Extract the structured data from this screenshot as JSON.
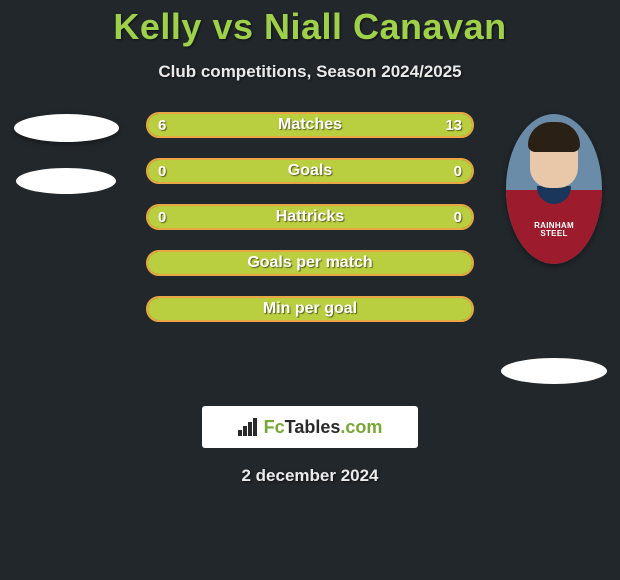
{
  "title": "Kelly vs Niall Canavan",
  "subtitle": "Club competitions, Season 2024/2025",
  "date": "2 december 2024",
  "logo": {
    "brand_a": "Fc",
    "brand_b": "Tables",
    "brand_c": ".com"
  },
  "colors": {
    "accent": "#9fd04a",
    "bar_fill": "#b9cf3f",
    "bar_border": "#e8a742",
    "bg": "#22272b"
  },
  "player_right": {
    "shirt_color": "#9c1c2e",
    "collar_color": "#1a365a",
    "sponsor_line1": "RAINHAM",
    "sponsor_line2": "STEEL"
  },
  "bars": [
    {
      "label": "Matches",
      "left": "6",
      "right": "13",
      "left_pct": 31.6,
      "right_pct": 68.4,
      "show_vals": true
    },
    {
      "label": "Goals",
      "left": "0",
      "right": "0",
      "left_pct": 100,
      "right_pct": 0,
      "show_vals": true
    },
    {
      "label": "Hattricks",
      "left": "0",
      "right": "0",
      "left_pct": 100,
      "right_pct": 0,
      "show_vals": true
    },
    {
      "label": "Goals per match",
      "left": "",
      "right": "",
      "left_pct": 100,
      "right_pct": 0,
      "show_vals": false
    },
    {
      "label": "Min per goal",
      "left": "",
      "right": "",
      "left_pct": 100,
      "right_pct": 0,
      "show_vals": false
    }
  ]
}
